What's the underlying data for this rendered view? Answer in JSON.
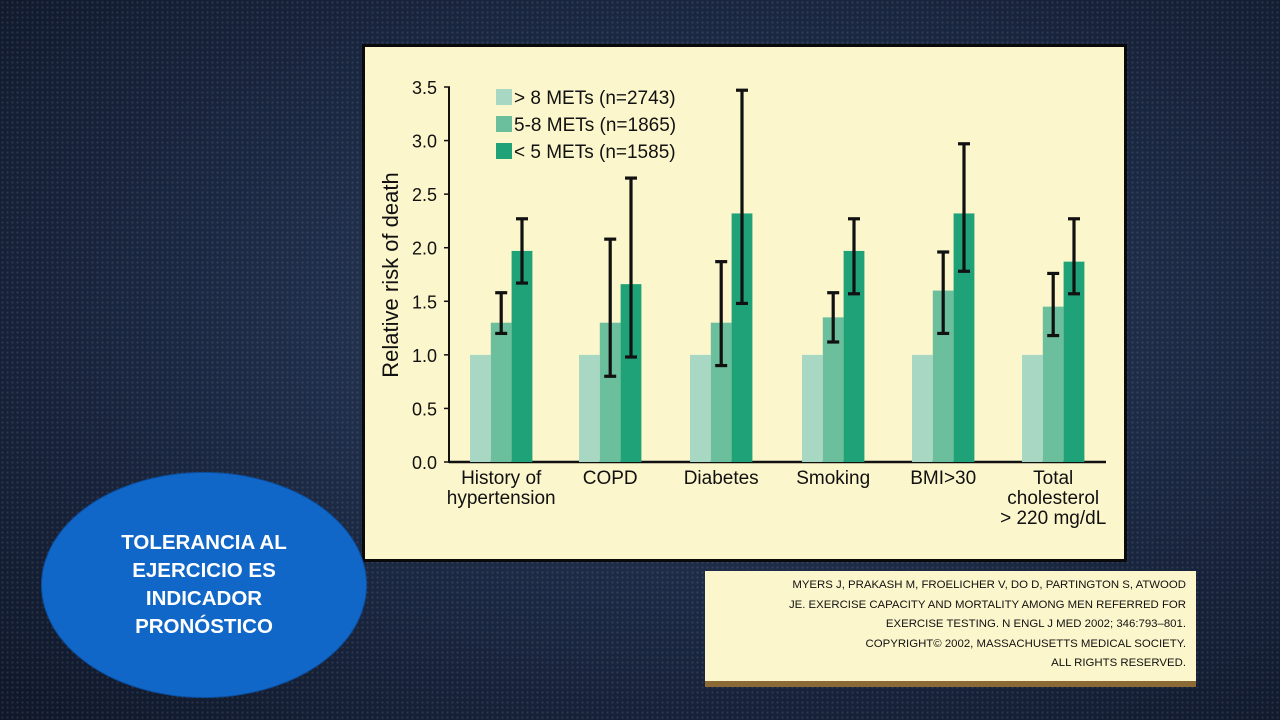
{
  "chart_data": {
    "type": "bar",
    "ylabel": "Relative risk of death",
    "ylim": [
      0,
      3.5
    ],
    "yticks": [
      "0.0",
      "0.5",
      "1.0",
      "1.5",
      "2.0",
      "2.5",
      "3.0",
      "3.5"
    ],
    "categories": [
      [
        "History of",
        "hypertension"
      ],
      [
        "COPD"
      ],
      [
        "Diabetes"
      ],
      [
        "Smoking"
      ],
      [
        "BMI>30"
      ],
      [
        "Total",
        "cholesterol",
        "> 220 mg/dL"
      ]
    ],
    "legend_position": "top-left",
    "series": [
      {
        "name": "> 8 METs (n=2743)",
        "color": "#a8d8c4",
        "values": [
          1.0,
          1.0,
          1.0,
          1.0,
          1.0,
          1.0
        ],
        "error": [
          null,
          null,
          null,
          null,
          null,
          null
        ]
      },
      {
        "name": "5-8 METs (n=1865)",
        "color": "#6bbf9d",
        "values": [
          1.3,
          1.3,
          1.3,
          1.35,
          1.6,
          1.45
        ],
        "error": [
          [
            1.2,
            1.58
          ],
          [
            0.8,
            2.08
          ],
          [
            0.9,
            1.87
          ],
          [
            1.12,
            1.58
          ],
          [
            1.2,
            1.96
          ],
          [
            1.18,
            1.76
          ]
        ]
      },
      {
        "name": "< 5 METs (n=1585)",
        "color": "#1fa277",
        "values": [
          1.97,
          1.66,
          2.32,
          1.97,
          2.32,
          1.87
        ],
        "error": [
          [
            1.67,
            2.27
          ],
          [
            0.98,
            2.65
          ],
          [
            1.48,
            3.47
          ],
          [
            1.57,
            2.27
          ],
          [
            1.78,
            2.97
          ],
          [
            1.57,
            2.27
          ]
        ]
      }
    ]
  },
  "citation": [
    "MYERS J, PRAKASH M, FROELICHER V, DO D, PARTINGTON S, ATWOOD",
    "JE. EXERCISE CAPACITY AND MORTALITY AMONG MEN REFERRED FOR",
    "EXERCISE TESTING. N ENGL J MED 2002; 346:793–801.",
    "COPYRIGHT© 2002, MASSACHUSETTS MEDICAL SOCIETY.",
    "ALL RIGHTS RESERVED."
  ],
  "oval_text": [
    "TOLERANCIA AL",
    "EJERCICIO ES",
    "INDICADOR",
    "PRONÓSTICO"
  ]
}
